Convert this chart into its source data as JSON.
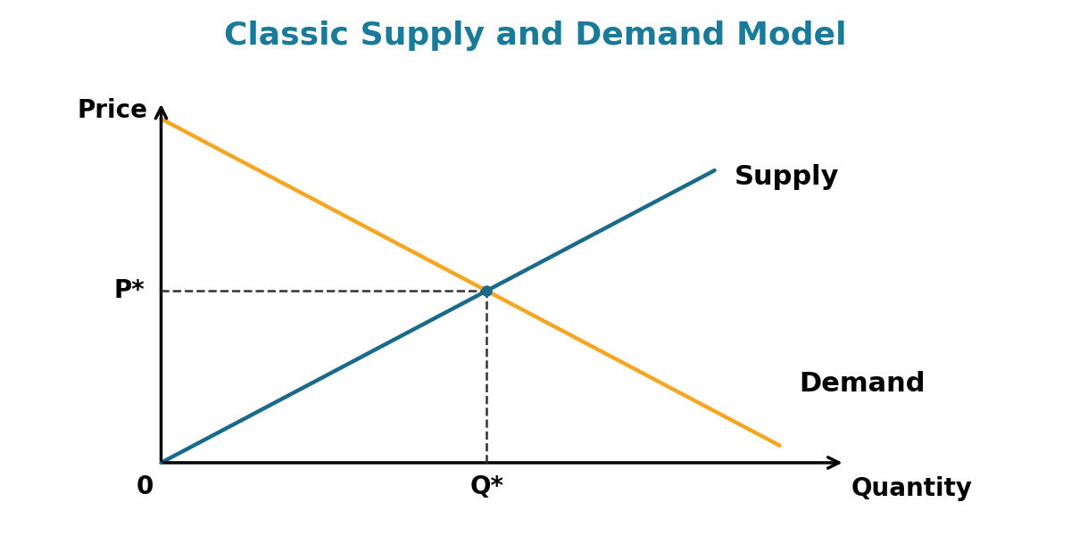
{
  "title": "Classic Supply and Demand Model",
  "title_color": "#1a7a9a",
  "title_fontsize": 26,
  "title_fontweight": "bold",
  "background_color": "#ffffff",
  "supply_color": "#1a6b8a",
  "demand_color": "#f5a623",
  "axis_color": "#000000",
  "dashed_color": "#333333",
  "supply_label": "Supply",
  "demand_label": "Demand",
  "price_label": "Price",
  "quantity_label": "Quantity",
  "origin_label": "0",
  "equilibrium_q_label": "Q*",
  "equilibrium_p_label": "P*",
  "x_range": [
    0,
    10
  ],
  "y_range": [
    0,
    10
  ],
  "equilibrium_x": 5,
  "equilibrium_y": 5,
  "supply_x_start": 0,
  "supply_y_start": 0,
  "supply_x_end": 8.5,
  "supply_y_end": 8.5,
  "demand_x_start": 0,
  "demand_y_start": 10,
  "demand_x_end": 9.5,
  "demand_y_end": 0.5,
  "line_width": 3.2,
  "label_fontsize": 20,
  "supply_label_fontsize": 22,
  "demand_label_fontsize": 22,
  "axis_linewidth": 2.5,
  "dot_color": "#1a6b8a",
  "dot_size": 8
}
